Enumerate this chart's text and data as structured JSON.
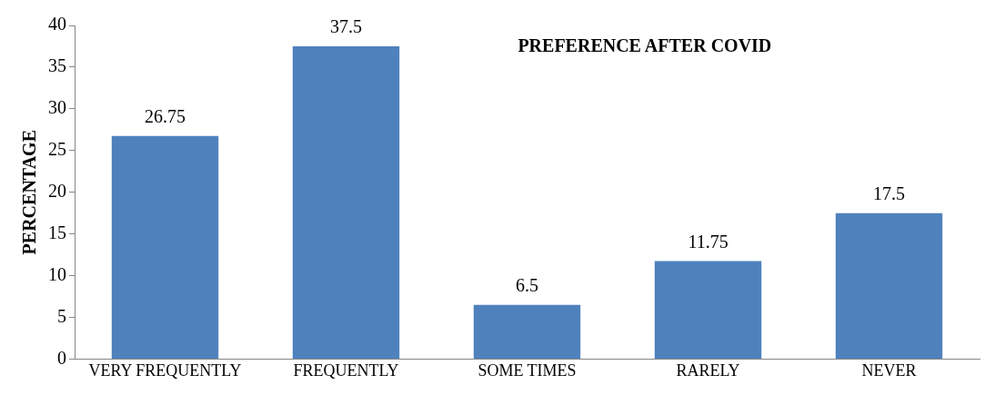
{
  "chart_data": {
    "type": "bar",
    "title": "PREFERENCE AFTER COVID",
    "ylabel": "PERCENTAGE",
    "categories": [
      "VERY FREQUENTLY",
      "FREQUENTLY",
      "SOME TIMES",
      "RARELY",
      "NEVER"
    ],
    "values": [
      26.75,
      37.5,
      6.5,
      11.75,
      17.5
    ],
    "color": "#4f81bd",
    "ylim": [
      0,
      40
    ],
    "yticks": [
      0,
      5,
      10,
      15,
      20,
      25,
      30,
      35,
      40
    ],
    "grid": false,
    "legend": false,
    "data_labels": true
  }
}
